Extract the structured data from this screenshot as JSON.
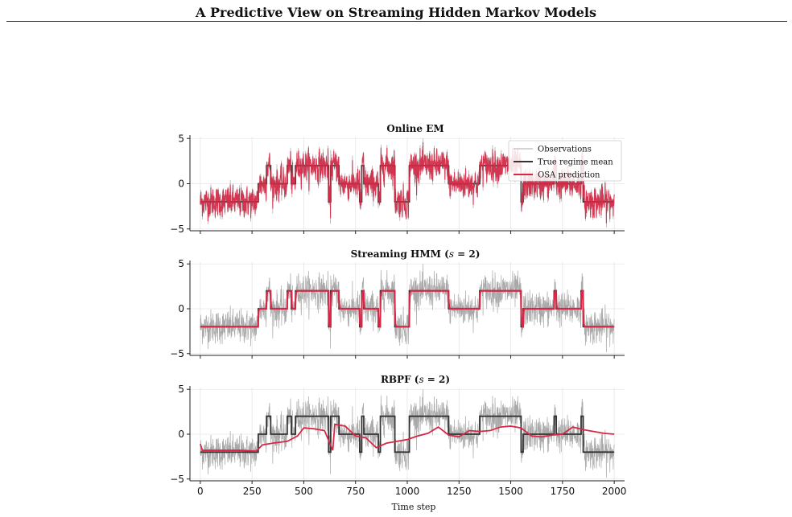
{
  "page_title": "A Predictive View on Streaming Hidden Markov Models",
  "chart_data": [
    {
      "type": "line",
      "title": "Online EM",
      "xlabel": "",
      "ylabel": "",
      "xlim": [
        -50,
        2050
      ],
      "ylim": [
        -5.2,
        5.2
      ],
      "xticks": [
        0,
        250,
        500,
        750,
        1000,
        1250,
        1500,
        1750,
        2000
      ],
      "yticks": [
        -5,
        0,
        5
      ],
      "ytick_labels": [
        "−5",
        "0",
        "5"
      ],
      "grid": true,
      "legend": {
        "placement": "top-right",
        "entries": [
          "Observations",
          "True regime mean",
          "OSA prediction"
        ]
      },
      "osa_mode": "tracks_observations"
    },
    {
      "type": "line",
      "title": "Streaming HMM (s = 2)",
      "xlabel": "",
      "ylabel": "",
      "xlim": [
        -50,
        2050
      ],
      "ylim": [
        -5.2,
        5.2
      ],
      "xticks": [
        0,
        250,
        500,
        750,
        1000,
        1250,
        1500,
        1750,
        2000
      ],
      "yticks": [
        -5,
        0,
        5
      ],
      "ytick_labels": [
        "−5",
        "0",
        "5"
      ],
      "grid": true,
      "osa_mode": "tracks_regime_mean"
    },
    {
      "type": "line",
      "title": "RBPF (s = 2)",
      "xlabel": "Time step",
      "ylabel": "",
      "xlim": [
        -50,
        2050
      ],
      "ylim": [
        -5.2,
        5.2
      ],
      "xticks": [
        0,
        250,
        500,
        750,
        1000,
        1250,
        1500,
        1750,
        2000
      ],
      "xtick_labels": [
        "0",
        "250",
        "500",
        "750",
        "1000",
        "1250",
        "1500",
        "1750",
        "2000"
      ],
      "yticks": [
        -5,
        0,
        5
      ],
      "ytick_labels": [
        "−5",
        "0",
        "5"
      ],
      "grid": true,
      "osa_mode": "lagged_smooth",
      "osa_prediction": {
        "x": [
          0,
          10,
          100,
          200,
          270,
          300,
          350,
          420,
          470,
          500,
          550,
          600,
          640,
          650,
          700,
          750,
          800,
          850,
          900,
          950,
          1000,
          1050,
          1100,
          1150,
          1200,
          1250,
          1300,
          1350,
          1400,
          1450,
          1500,
          1550,
          1600,
          1650,
          1700,
          1750,
          1800,
          1850,
          1900,
          1950,
          2000
        ],
        "y": [
          -1.1,
          -1.8,
          -1.8,
          -1.8,
          -1.9,
          -1.2,
          -1.0,
          -0.8,
          -0.2,
          0.7,
          0.6,
          0.4,
          -1.8,
          1.1,
          0.9,
          -0.2,
          -0.4,
          -1.5,
          -1.0,
          -0.8,
          -0.6,
          -0.2,
          0.1,
          0.8,
          -0.1,
          -0.3,
          0.4,
          0.3,
          0.4,
          0.8,
          0.9,
          0.7,
          -0.2,
          -0.3,
          -0.1,
          0.0,
          0.8,
          0.5,
          0.3,
          0.1,
          0.0
        ]
      }
    }
  ],
  "series_meta": {
    "regimes": {
      "x_start": [
        0,
        280,
        320,
        340,
        420,
        440,
        460,
        480,
        620,
        630,
        670,
        770,
        780,
        790,
        860,
        870,
        940,
        950,
        1010,
        1200,
        1350,
        1550,
        1560,
        1710,
        1720,
        1790,
        1840,
        1850,
        2000
      ],
      "mean": [
        -2,
        0,
        2,
        0,
        2,
        0,
        2,
        2,
        -2,
        2,
        0,
        -2,
        2,
        0,
        -2,
        2,
        -2,
        -2,
        2,
        0,
        2,
        -2,
        0,
        2,
        0,
        0,
        2,
        -2,
        -2
      ]
    },
    "colors": {
      "observations": "#a9a9a9",
      "true_mean": "#333333",
      "osa": "#d62846"
    }
  }
}
